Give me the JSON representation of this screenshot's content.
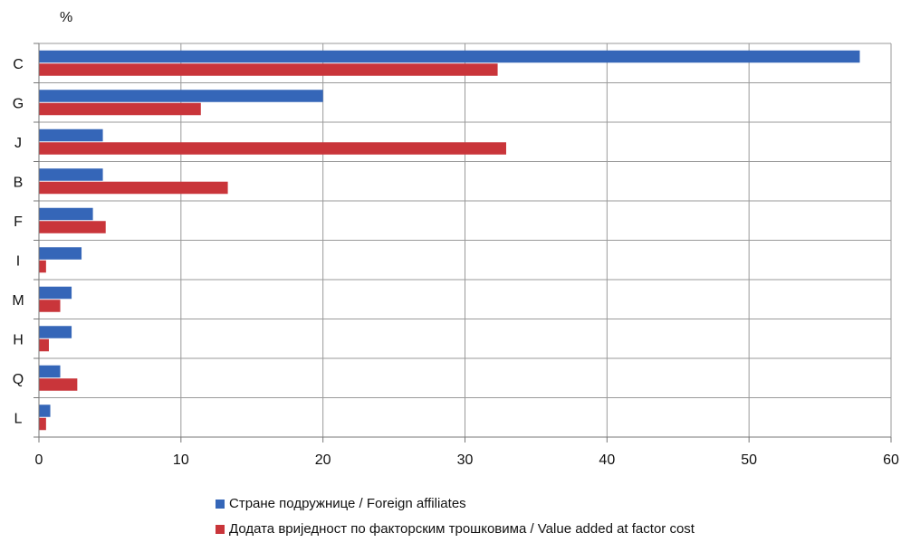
{
  "chart_data": {
    "type": "bar",
    "orientation": "horizontal",
    "unit_label": "%",
    "categories": [
      "C",
      "G",
      "J",
      "B",
      "F",
      "I",
      "M",
      "H",
      "Q",
      "L"
    ],
    "series": [
      {
        "name": "Стране подружнице / Foreign affiliates",
        "color": "#3566b8",
        "values": [
          57.8,
          20.0,
          4.5,
          4.5,
          3.8,
          3.0,
          2.3,
          2.3,
          1.5,
          0.8
        ]
      },
      {
        "name": "Додата вриједност по факторским трошковима / Value added at factor cost",
        "color": "#c9353a",
        "values": [
          32.3,
          11.4,
          32.9,
          13.3,
          4.7,
          0.5,
          1.5,
          0.7,
          2.7,
          0.5
        ]
      }
    ],
    "xlim": [
      0,
      60
    ],
    "xticks": [
      0,
      10,
      20,
      30,
      40,
      50,
      60
    ],
    "grid": true,
    "legend_position": "bottom"
  }
}
